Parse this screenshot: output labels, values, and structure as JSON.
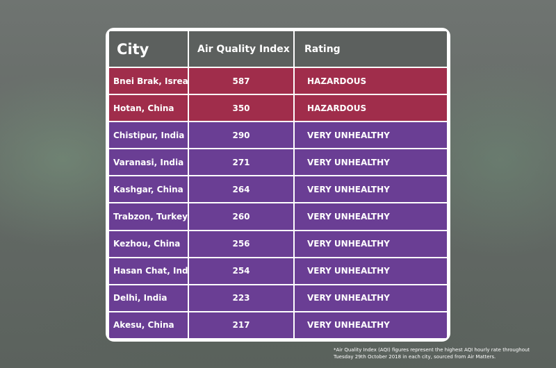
{
  "table": {
    "headers": [
      "City",
      "Air Quality  Index",
      "Rating"
    ],
    "rows": [
      {
        "city": "Bnei Brak, Isreal",
        "aqi": "587",
        "rating": "HAZARDOUS"
      },
      {
        "city": "Hotan, China",
        "aqi": "350",
        "rating": "HAZARDOUS"
      },
      {
        "city": "Chistipur, India",
        "aqi": "290",
        "rating": "VERY UNHEALTHY"
      },
      {
        "city": "Varanasi, India",
        "aqi": "271",
        "rating": "VERY UNHEALTHY"
      },
      {
        "city": "Kashgar, China",
        "aqi": "264",
        "rating": "VERY UNHEALTHY"
      },
      {
        "city": "Trabzon, Turkey",
        "aqi": "260",
        "rating": "VERY UNHEALTHY"
      },
      {
        "city": "Kezhou, China",
        "aqi": "256",
        "rating": "VERY UNHEALTHY"
      },
      {
        "city": "Hasan Chat, India",
        "aqi": "254",
        "rating": "VERY UNHEALTHY"
      },
      {
        "city": "Delhi, India",
        "aqi": "223",
        "rating": "VERY UNHEALTHY"
      },
      {
        "city": "Akesu, China",
        "aqi": "217",
        "rating": "VERY UNHEALTHY"
      }
    ]
  },
  "chart_data": {
    "type": "table",
    "columns": [
      "City",
      "Air Quality  Index",
      "Rating"
    ],
    "rows": [
      [
        "Bnei Brak, Isreal",
        587,
        "HAZARDOUS"
      ],
      [
        "Hotan, China",
        350,
        "HAZARDOUS"
      ],
      [
        "Chistipur, India",
        290,
        "VERY UNHEALTHY"
      ],
      [
        "Varanasi, India",
        271,
        "VERY UNHEALTHY"
      ],
      [
        "Kashgar, China",
        264,
        "VERY UNHEALTHY"
      ],
      [
        "Trabzon, Turkey",
        260,
        "VERY UNHEALTHY"
      ],
      [
        "Kezhou, China",
        256,
        "VERY UNHEALTHY"
      ],
      [
        "Hasan Chat, India",
        254,
        "VERY UNHEALTHY"
      ],
      [
        "Delhi, India",
        223,
        "VERY UNHEALTHY"
      ],
      [
        "Akesu, China",
        217,
        "VERY UNHEALTHY"
      ]
    ]
  },
  "colors": {
    "header": "#5c605e",
    "hazardous": "#a02d4b",
    "very_unhealthy": "#6a3e94",
    "border": "#ffffff"
  },
  "footnote": {
    "line1": "*Air Quality Index (AQI) figures represent the highest AQI hourly rate throughout",
    "line2": "Tuesday 29th October 2018 in each city, sourced from Air Matters."
  }
}
